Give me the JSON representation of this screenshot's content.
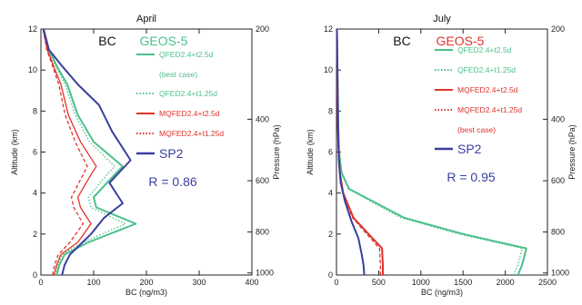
{
  "chart_data": [
    {
      "type": "line",
      "title": "April",
      "xlabel": "BC (ng/m3)",
      "ylabel": "Altitude (km)",
      "ylabel_right": "Pressure (hPa)",
      "xlim": [
        0,
        400
      ],
      "ylim": [
        0,
        12
      ],
      "x_ticks": [
        "0",
        "100",
        "200",
        "300",
        "400"
      ],
      "y_ticks": [
        "0",
        "2",
        "4",
        "6",
        "8",
        "10",
        "12"
      ],
      "pressure_ticks": [
        {
          "label": "200",
          "alt": 12
        },
        {
          "label": "400",
          "alt": 7.6
        },
        {
          "label": "600",
          "alt": 4.6
        },
        {
          "label": "800",
          "alt": 2.1
        },
        {
          "label": "1000",
          "alt": 0.1
        }
      ],
      "header_left": "BC",
      "header_right": "GEOS-5",
      "header_right_color": "#4cc08c",
      "stat": "R = 0.86",
      "stat_color": "#3a3fa0",
      "legend": [
        {
          "label": "QFED2.4+t2.5d",
          "color": "#4cc08c",
          "dash": "solid"
        },
        {
          "label": "(best case)",
          "color": "#4cc08c",
          "dash": "none"
        },
        {
          "label": "QFED2.4+t1.25d",
          "color": "#4cc08c",
          "dash": "dotted"
        },
        {
          "label": "MQFED2.4+t2.5d",
          "color": "#e0332c",
          "dash": "solid"
        },
        {
          "label": "MQFED2.4+t1.25d",
          "color": "#e0332c",
          "dash": "dotted"
        },
        {
          "label": "SP2",
          "color": "#3a3fa0",
          "dash": "solid"
        }
      ],
      "series": [
        {
          "name": "QFED2.4+t2.5d",
          "color": "#4cc08c",
          "dash": "solid",
          "width": 2,
          "x": [
            30,
            35,
            45,
            90,
            180,
            105,
            100,
            140,
            155,
            100,
            70,
            50,
            30,
            15,
            5
          ],
          "y": [
            0,
            0.5,
            1.0,
            1.6,
            2.5,
            3.3,
            3.8,
            4.9,
            5.3,
            6.5,
            7.8,
            9.3,
            10.2,
            11,
            12
          ]
        },
        {
          "name": "QFED2.4+t1.25d",
          "color": "#4cc08c",
          "dash": "dotted",
          "width": 1.3,
          "x": [
            28,
            32,
            40,
            80,
            160,
            95,
            90,
            125,
            140,
            92,
            65,
            46,
            28,
            13,
            5
          ],
          "y": [
            0,
            0.5,
            1.0,
            1.6,
            2.5,
            3.3,
            3.8,
            4.9,
            5.3,
            6.5,
            7.8,
            9.3,
            10.2,
            11,
            12
          ]
        },
        {
          "name": "MQFED2.4+t2.5d",
          "color": "#e0332c",
          "dash": "solid",
          "width": 1.3,
          "x": [
            25,
            30,
            38,
            70,
            95,
            75,
            70,
            95,
            105,
            75,
            52,
            38,
            24,
            12,
            4
          ],
          "y": [
            0,
            0.5,
            1.0,
            1.6,
            2.5,
            3.3,
            3.8,
            4.9,
            5.3,
            6.5,
            7.8,
            9.3,
            10.2,
            11,
            12
          ]
        },
        {
          "name": "MQFED2.4+t1.25d",
          "color": "#e0332c",
          "dash": "dashed",
          "width": 1.3,
          "x": [
            22,
            26,
            33,
            55,
            80,
            62,
            58,
            80,
            88,
            65,
            46,
            34,
            22,
            11,
            4
          ],
          "y": [
            0,
            0.5,
            1.0,
            1.6,
            2.5,
            3.3,
            3.8,
            4.9,
            5.3,
            6.5,
            7.8,
            9.3,
            10.2,
            11,
            12
          ]
        },
        {
          "name": "SP2",
          "color": "#3a3fa0",
          "dash": "solid",
          "width": 2,
          "x": [
            40,
            45,
            55,
            75,
            95,
            120,
            155,
            130,
            170,
            135,
            110,
            70,
            40,
            15,
            5
          ],
          "y": [
            0,
            0.5,
            1.0,
            1.5,
            2.0,
            2.8,
            3.5,
            4.5,
            5.6,
            7.0,
            8.3,
            9.3,
            10.2,
            11,
            12
          ]
        }
      ]
    },
    {
      "type": "line",
      "title": "July",
      "xlabel": "BC (ng/m3)",
      "ylabel": "Altitude (km)",
      "ylabel_right": "Pressure (hPa)",
      "xlim": [
        0,
        2500
      ],
      "ylim": [
        0,
        12
      ],
      "x_ticks": [
        "0",
        "500",
        "1000",
        "1500",
        "2000",
        "2500"
      ],
      "y_ticks": [
        "0",
        "2",
        "4",
        "6",
        "8",
        "10",
        "12"
      ],
      "pressure_ticks": [
        {
          "label": "200",
          "alt": 12
        },
        {
          "label": "400",
          "alt": 7.6
        },
        {
          "label": "600",
          "alt": 4.6
        },
        {
          "label": "800",
          "alt": 2.1
        },
        {
          "label": "1000",
          "alt": 0.1
        }
      ],
      "header_left": "BC",
      "header_right": "GEOS-5",
      "header_right_color": "#e0332c",
      "stat": "R = 0.95",
      "stat_color": "#3a3fa0",
      "legend": [
        {
          "label": "QFED2.4+t2.5d",
          "color": "#4cc08c",
          "dash": "solid"
        },
        {
          "label": "QFED2.4+t1.25d",
          "color": "#4cc08c",
          "dash": "dotted"
        },
        {
          "label": "MQFED2.4+t2.5d",
          "color": "#e0332c",
          "dash": "solid"
        },
        {
          "label": "MQFED2.4+t1.25d",
          "color": "#e0332c",
          "dash": "dotted"
        },
        {
          "label": "(best case)",
          "color": "#e0332c",
          "dash": "none"
        },
        {
          "label": "SP2",
          "color": "#3a3fa0",
          "dash": "solid"
        }
      ],
      "series": [
        {
          "name": "QFED2.4+t2.5d",
          "color": "#4cc08c",
          "dash": "solid",
          "width": 2,
          "x": [
            2150,
            2200,
            2250,
            1500,
            800,
            150,
            60,
            30,
            20,
            15,
            10,
            5
          ],
          "y": [
            0,
            0.5,
            1.3,
            2.0,
            2.8,
            4.2,
            5.0,
            6.0,
            7.5,
            9.0,
            10.5,
            12
          ]
        },
        {
          "name": "QFED2.4+t1.25d",
          "color": "#4cc08c",
          "dash": "dotted",
          "width": 1.3,
          "x": [
            2100,
            2150,
            2200,
            1450,
            760,
            140,
            55,
            28,
            18,
            14,
            9,
            5
          ],
          "y": [
            0,
            0.5,
            1.3,
            2.0,
            2.8,
            4.2,
            5.0,
            6.0,
            7.5,
            9.0,
            10.5,
            12
          ]
        },
        {
          "name": "MQFED2.4+t2.5d",
          "color": "#e0332c",
          "dash": "solid",
          "width": 2,
          "x": [
            550,
            550,
            540,
            380,
            200,
            80,
            40,
            25,
            15,
            10,
            5
          ],
          "y": [
            0,
            0.5,
            1.3,
            2.0,
            2.8,
            4.0,
            5.0,
            6.0,
            7.5,
            9.5,
            12
          ]
        },
        {
          "name": "MQFED2.4+t1.25d",
          "color": "#e0332c",
          "dash": "dashed",
          "width": 1.3,
          "x": [
            520,
            520,
            510,
            360,
            190,
            75,
            38,
            24,
            14,
            9,
            5
          ],
          "y": [
            0,
            0.5,
            1.3,
            2.0,
            2.8,
            4.0,
            5.0,
            6.0,
            7.5,
            9.5,
            12
          ]
        },
        {
          "name": "SP2",
          "color": "#3a3fa0",
          "dash": "solid",
          "width": 2,
          "x": [
            330,
            320,
            300,
            260,
            180,
            100,
            50,
            30,
            20,
            15,
            10,
            5
          ],
          "y": [
            0,
            0.5,
            1.0,
            1.8,
            2.6,
            3.6,
            4.5,
            5.5,
            7.0,
            9.0,
            10.5,
            12
          ]
        }
      ]
    }
  ]
}
